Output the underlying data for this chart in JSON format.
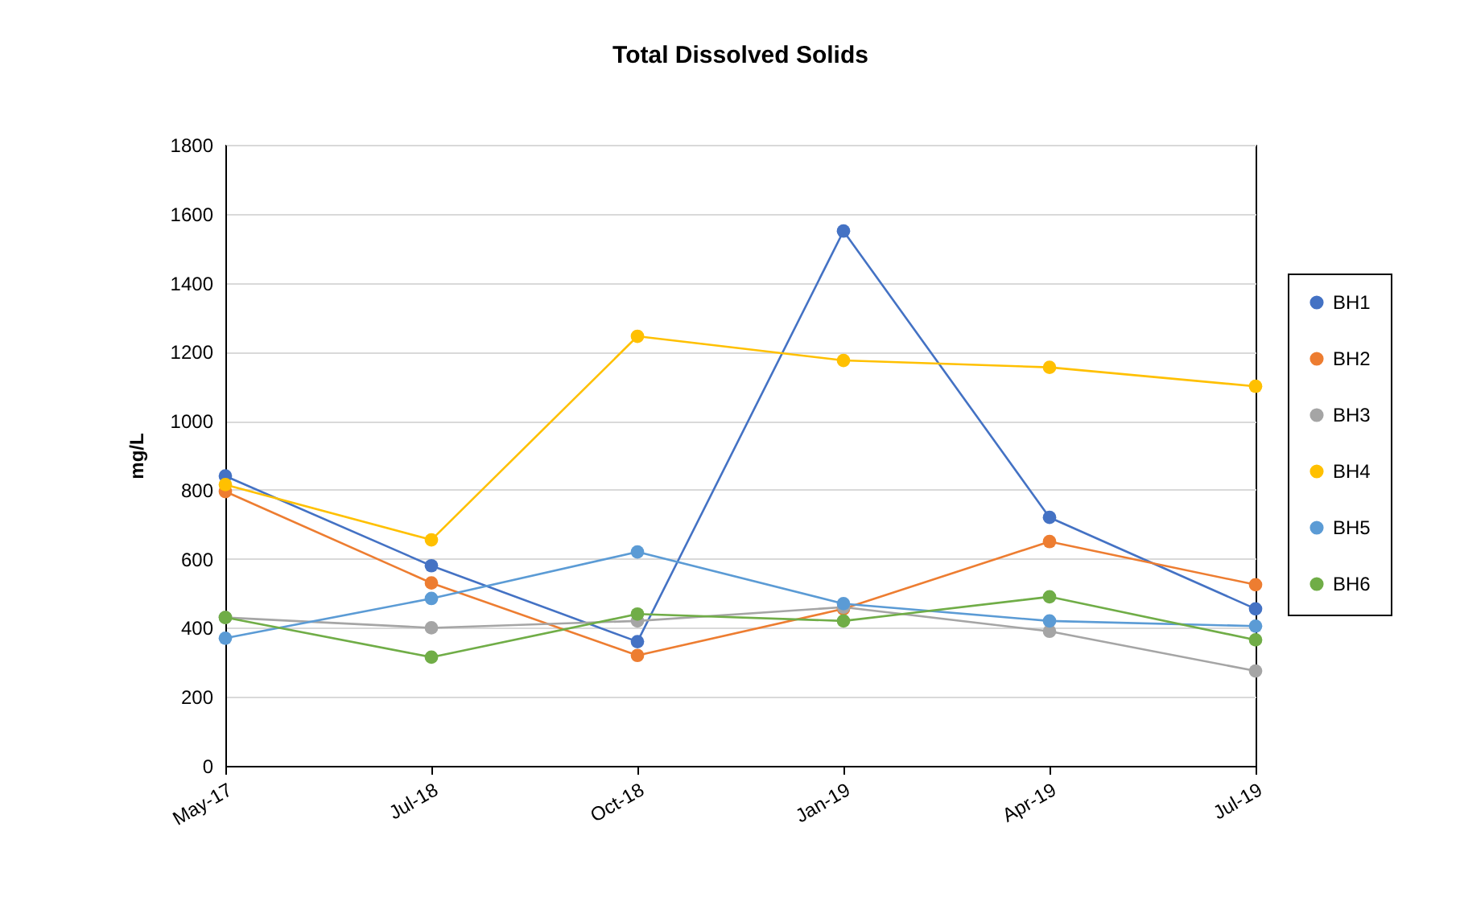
{
  "chart_data": {
    "type": "line",
    "title": "Total Dissolved  Solids",
    "ylabel": "mg/L",
    "categories": [
      "May-17",
      "Jul-18",
      "Oct-18",
      "Jan-19",
      "Apr-19",
      "Jul-19"
    ],
    "series": [
      {
        "name": "BH1",
        "color": "#4472c4",
        "values": [
          840,
          580,
          360,
          1550,
          720,
          455
        ]
      },
      {
        "name": "BH2",
        "color": "#ed7d31",
        "values": [
          795,
          530,
          320,
          455,
          650,
          525
        ]
      },
      {
        "name": "BH3",
        "color": "#a5a5a5",
        "values": [
          430,
          400,
          420,
          460,
          390,
          275
        ]
      },
      {
        "name": "BH4",
        "color": "#ffc000",
        "values": [
          815,
          655,
          1245,
          1175,
          1155,
          1100
        ]
      },
      {
        "name": "BH5",
        "color": "#5b9bd5",
        "values": [
          370,
          485,
          620,
          470,
          420,
          405
        ]
      },
      {
        "name": "BH6",
        "color": "#70ad47",
        "values": [
          430,
          315,
          440,
          420,
          490,
          365
        ]
      }
    ],
    "ylim": [
      0,
      1800
    ],
    "yticks": [
      0,
      200,
      400,
      600,
      800,
      1000,
      1200,
      1400,
      1600,
      1800
    ],
    "grid": "y",
    "legend": "right",
    "marker": "circle",
    "line_style": "solid"
  }
}
